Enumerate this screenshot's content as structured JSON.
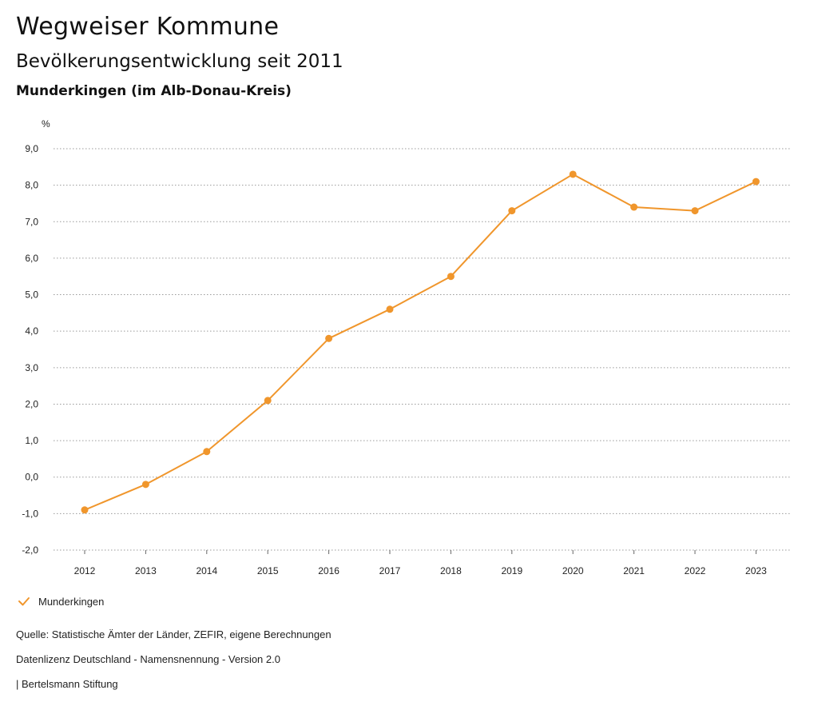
{
  "header": {
    "title": "Wegweiser Kommune",
    "subtitle": "Bevölkerungsentwicklung seit 2011",
    "region": "Munderkingen (im Alb-Donau-Kreis)"
  },
  "colors": {
    "series": "#f0962c",
    "grid": "#9a9a9a",
    "text": "#222222"
  },
  "chart_data": {
    "type": "line",
    "title": "Bevölkerungsentwicklung seit 2011",
    "xlabel": "",
    "ylabel": "%",
    "x": [
      "2012",
      "2013",
      "2014",
      "2015",
      "2016",
      "2017",
      "2018",
      "2019",
      "2020",
      "2021",
      "2022",
      "2023"
    ],
    "series": [
      {
        "name": "Munderkingen",
        "values": [
          -0.9,
          -0.2,
          0.7,
          2.1,
          3.8,
          4.6,
          5.5,
          7.3,
          8.3,
          7.4,
          7.3,
          8.1
        ]
      }
    ],
    "ylim": [
      -2,
      9
    ],
    "yticks": [
      -2,
      -1,
      0,
      1,
      2,
      3,
      4,
      5,
      6,
      7,
      8,
      9
    ],
    "ytick_labels": [
      "-2,0",
      "-1,0",
      "0,0",
      "1,0",
      "2,0",
      "3,0",
      "4,0",
      "5,0",
      "6,0",
      "7,0",
      "8,0",
      "9,0"
    ],
    "grid": true,
    "legend_position": "bottom-left"
  },
  "footer": {
    "source": "Quelle: Statistische Ämter der Länder, ZEFIR, eigene Berechnungen",
    "license": "Datenlizenz Deutschland - Namensnennung - Version 2.0",
    "publisher": "| Bertelsmann Stiftung"
  }
}
